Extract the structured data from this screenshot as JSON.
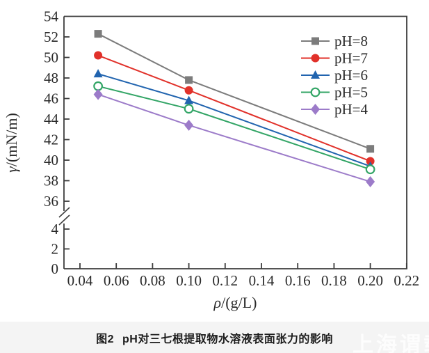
{
  "caption": {
    "number": "图2",
    "text": "pH对三七根提取物水溶液表面张力的影响"
  },
  "watermark": "上海谓载",
  "colors": {
    "frame": "#3d3d3d",
    "tick_text": "#2a2a2a",
    "background": "#ffffff",
    "caption_band": "#f4f4f4"
  },
  "chart_data": {
    "type": "line",
    "title": "",
    "x": [
      0.05,
      0.1,
      0.2
    ],
    "series": [
      {
        "name": "pH=8",
        "values": [
          52.3,
          47.8,
          41.1
        ],
        "color": "#7c7c7c",
        "marker": "square"
      },
      {
        "name": "pH=7",
        "values": [
          50.2,
          46.8,
          39.9
        ],
        "color": "#e1312a",
        "marker": "circle"
      },
      {
        "name": "pH=6",
        "values": [
          48.4,
          45.8,
          39.4
        ],
        "color": "#2164af",
        "marker": "triangle"
      },
      {
        "name": "pH=5",
        "values": [
          47.2,
          45.0,
          39.1
        ],
        "color": "#33a566",
        "marker": "circle-open"
      },
      {
        "name": "pH=4",
        "values": [
          46.4,
          43.4,
          37.9
        ],
        "color": "#9c7bc9",
        "marker": "diamond"
      }
    ],
    "xlabel_symbol": "ρ",
    "xlabel_rest": "/(g/L)",
    "ylabel_symbol": "γ",
    "ylabel_rest": "/(mN/m)",
    "x_ticks": [
      0.04,
      0.06,
      0.08,
      0.1,
      0.12,
      0.14,
      0.16,
      0.18,
      0.2,
      0.22
    ],
    "y_ticks_upper": [
      36,
      38,
      40,
      42,
      44,
      46,
      48,
      50,
      52,
      54
    ],
    "y_ticks_lower": [
      0,
      2,
      4
    ],
    "y_axis_break": true,
    "xlim": [
      0.031,
      0.22
    ],
    "ylim_upper": [
      36,
      54
    ],
    "ylim_lower": [
      0,
      4
    ],
    "grid": false,
    "legend": {
      "position": "upper-right",
      "labels": [
        "pH=8",
        "pH=7",
        "pH=6",
        "pH=5",
        "pH=4"
      ]
    }
  }
}
